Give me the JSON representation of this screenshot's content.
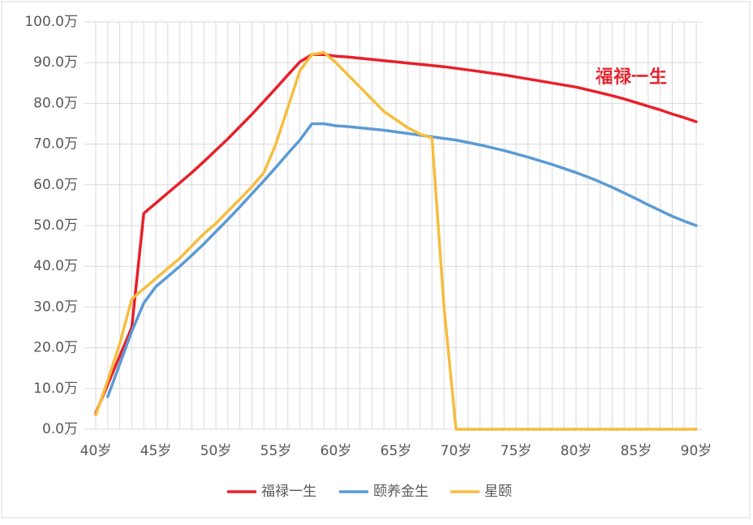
{
  "chart_data": {
    "type": "line",
    "categories": [
      "40岁",
      null,
      null,
      null,
      null,
      "45岁",
      null,
      null,
      null,
      null,
      "50岁",
      null,
      null,
      null,
      null,
      "55岁",
      null,
      null,
      null,
      null,
      "60岁",
      null,
      null,
      null,
      null,
      "65岁",
      null,
      null,
      null,
      null,
      "70岁",
      null,
      null,
      null,
      null,
      "75岁",
      null,
      null,
      null,
      null,
      "80岁",
      null,
      null,
      null,
      null,
      "85岁",
      null,
      null,
      null,
      null,
      "90岁"
    ],
    "series": [
      {
        "name": "福禄一生",
        "color": "#e8202a",
        "values": [
          4,
          11,
          18,
          25,
          53,
          55.5,
          58,
          60.5,
          63,
          65.7,
          68.5,
          71.3,
          74.3,
          77.3,
          80.5,
          83.7,
          87,
          90.2,
          92,
          92,
          91.6,
          91.4,
          91.1,
          90.8,
          90.5,
          90.2,
          89.9,
          89.6,
          89.3,
          89.0,
          88.6,
          88.2,
          87.8,
          87.4,
          87.0,
          86.5,
          86.0,
          85.5,
          85.0,
          84.5,
          84.0,
          83.3,
          82.6,
          81.9,
          81.1,
          80.2,
          79.3,
          78.4,
          77.4,
          76.5,
          75.5
        ]
      },
      {
        "name": "颐养金生",
        "color": "#5b9bd5",
        "values": [
          null,
          8,
          16,
          24,
          31,
          35,
          37.5,
          40,
          42.7,
          45.5,
          48.5,
          51.5,
          54.6,
          57.8,
          61,
          64.3,
          67.7,
          71,
          75,
          75,
          74.5,
          74.3,
          74.0,
          73.7,
          73.4,
          73.0,
          72.6,
          72.2,
          71.8,
          71.4,
          71.0,
          70.4,
          69.8,
          69.1,
          68.4,
          67.6,
          66.8,
          65.9,
          65.0,
          64.0,
          63.0,
          61.9,
          60.7,
          59.4,
          58.0,
          56.6,
          55.1,
          53.7,
          52.3,
          51.1,
          50
        ]
      },
      {
        "name": "星颐",
        "color": "#f6bd3f",
        "values": [
          3.5,
          12,
          21,
          32,
          34.5,
          37,
          39.5,
          42,
          45,
          48,
          50.5,
          53.5,
          56.5,
          59.5,
          63,
          70,
          79,
          88,
          92,
          92.5,
          90,
          87,
          84,
          81,
          78,
          76,
          74,
          72.5,
          71.5,
          30,
          0,
          0,
          0,
          0,
          0,
          0,
          0,
          0,
          0,
          0,
          0,
          0,
          0,
          0,
          0,
          0,
          0,
          0,
          0,
          0,
          0
        ]
      }
    ],
    "ylim": [
      0,
      100
    ],
    "yticks": [
      {
        "value": 0,
        "label": "0.0万"
      },
      {
        "value": 10,
        "label": "10.0万"
      },
      {
        "value": 20,
        "label": "20.0万"
      },
      {
        "value": 30,
        "label": "30.0万"
      },
      {
        "value": 40,
        "label": "40.0万"
      },
      {
        "value": 50,
        "label": "50.0万"
      },
      {
        "value": 60,
        "label": "60.0万"
      },
      {
        "value": 70,
        "label": "70.0万"
      },
      {
        "value": 80,
        "label": "80.0万"
      },
      {
        "value": 90,
        "label": "90.0万"
      },
      {
        "value": 100,
        "label": "100.0万"
      }
    ],
    "grid": true,
    "legend": "bottom",
    "annotation": "福禄一生"
  }
}
